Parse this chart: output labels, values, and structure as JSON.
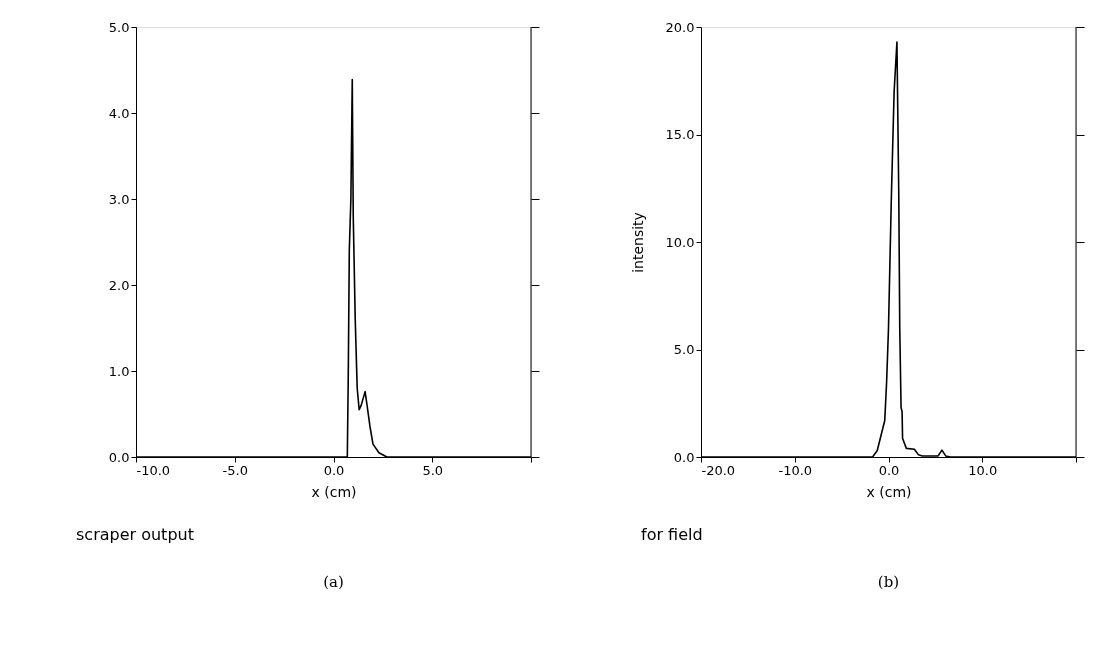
{
  "chart_data": [
    {
      "type": "line",
      "xlabel": "x (cm)",
      "annotations": [
        "scraper output",
        "(a)"
      ],
      "x": [
        -10,
        0.7,
        0.75,
        0.8,
        0.88,
        0.95,
        1.0,
        1.1,
        1.2,
        1.3,
        1.4,
        1.6,
        1.7,
        1.85,
        2.0,
        2.3,
        2.7,
        10
      ],
      "series": [
        {
          "color": "#000000",
          "values": [
            0,
            0,
            1.0,
            2.4,
            3.0,
            4.39,
            2.8,
            1.6,
            0.8,
            0.55,
            0.6,
            0.76,
            0.6,
            0.35,
            0.15,
            0.05,
            0,
            0
          ]
        }
      ],
      "xlim": [
        -10,
        10
      ],
      "ylim": [
        0,
        5
      ],
      "xticks": [
        {
          "value": -10,
          "label": "-10.0"
        },
        {
          "value": -5,
          "label": "-5.0"
        },
        {
          "value": 0,
          "label": "0.0"
        },
        {
          "value": 5,
          "label": "5.0"
        },
        {
          "value": 10,
          "label": null
        }
      ],
      "yticks": [
        {
          "value": 0,
          "label": "0.0"
        },
        {
          "value": 1,
          "label": "1.0"
        },
        {
          "value": 2,
          "label": "2.0"
        },
        {
          "value": 3,
          "label": "3.0"
        },
        {
          "value": 4,
          "label": "4.0"
        },
        {
          "value": 5,
          "label": "5.0"
        }
      ],
      "grid": false,
      "line_style": "solid"
    },
    {
      "type": "line",
      "xlabel": "x (cm)",
      "ylabel": "intensity",
      "annotations": [
        "for field",
        "(b)"
      ],
      "x": [
        -20,
        -1.7,
        -1.2,
        -0.8,
        -0.4,
        -0.2,
        0,
        0.3,
        0.6,
        0.9,
        1.1,
        1.2,
        1.34,
        1.45,
        1.5,
        1.9,
        2.76,
        3.2,
        3.6,
        5.3,
        5.7,
        6.1,
        6.6,
        20
      ],
      "series": [
        {
          "color": "#000000",
          "values": [
            0,
            0,
            0.3,
            1.0,
            1.7,
            3.5,
            6,
            12,
            17,
            19.3,
            12,
            6,
            2.3,
            2.1,
            0.87,
            0.4,
            0.36,
            0.1,
            0.05,
            0.05,
            0.32,
            0.05,
            0,
            0
          ]
        }
      ],
      "xlim": [
        -20,
        20
      ],
      "ylim": [
        0,
        20
      ],
      "xticks": [
        {
          "value": -20,
          "label": "-20.0"
        },
        {
          "value": -10,
          "label": "-10.0"
        },
        {
          "value": 0,
          "label": "0.0"
        },
        {
          "value": 10,
          "label": "10.0"
        },
        {
          "value": 20,
          "label": null
        }
      ],
      "yticks": [
        {
          "value": 0,
          "label": "0.0"
        },
        {
          "value": 5,
          "label": "5.0"
        },
        {
          "value": 10,
          "label": "10.0"
        },
        {
          "value": 15,
          "label": "15.0"
        },
        {
          "value": 20,
          "label": "20.0"
        }
      ],
      "grid": false,
      "line_style": "solid"
    }
  ]
}
